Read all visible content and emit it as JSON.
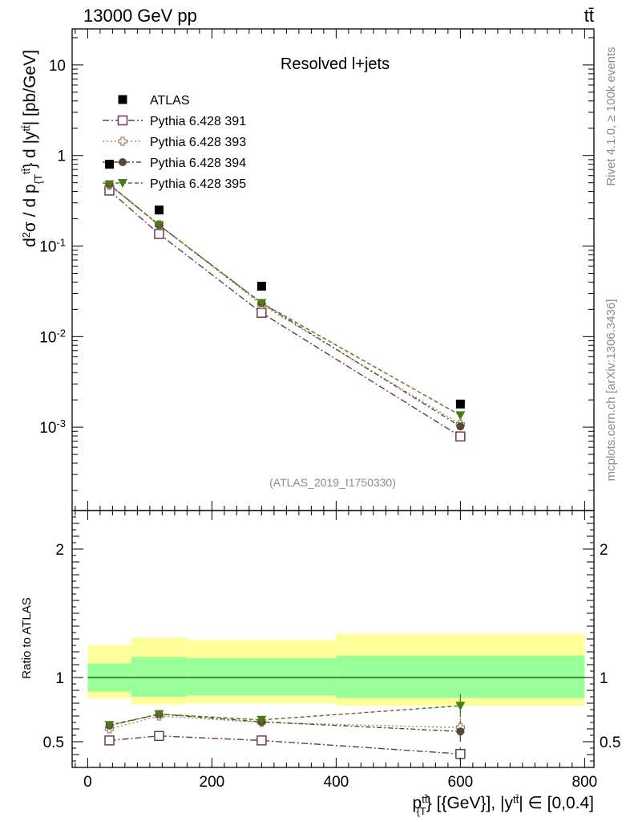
{
  "header": {
    "energy_label": "13000 GeV pp",
    "process_label": "tt̄"
  },
  "side_labels": {
    "rivet": "Rivet 4.1.0, ≥ 100k events",
    "mcplots": "mcplots.cern.ch [arXiv:1306.3436]"
  },
  "chart_data": {
    "type": "scatter",
    "title": "Resolved l+jets",
    "analysis_id": "(ATLAS_2019_I1750330)",
    "xlabel": "p_{T}^{tt̄} [{GeV}], |y^{tt̄}| ∈ [0,0.4]",
    "xlabel_display": "p{T}tt̄} [{GeV}], |ytt̄| ∈ [0,0.4]",
    "ylabel": "d²σ / d p_{T}^{tt̄} d |y^{tt̄}| [pb/GeV]",
    "ratio_ylabel": "Ratio to ATLAS",
    "xlim": [
      -25,
      815
    ],
    "ylim_main": [
      0.00012,
      25
    ],
    "yscale_main": "log",
    "ylim_ratio": [
      0.3,
      2.3
    ],
    "xticks": [
      0,
      200,
      400,
      600,
      800
    ],
    "xtick_labels": [
      "0",
      "200",
      "400",
      "600",
      "800"
    ],
    "yticks_main": [
      0.001,
      0.01,
      0.1,
      1,
      10
    ],
    "yticks_main_labels": [
      {
        "base": "10",
        "exp": "-3"
      },
      {
        "base": "10",
        "exp": "-2"
      },
      {
        "base": "10",
        "exp": "-1"
      },
      {
        "base": "1",
        "exp": ""
      },
      {
        "base": "10",
        "exp": ""
      }
    ],
    "yticks_ratio": [
      0.5,
      1,
      2
    ],
    "yticks_ratio_labels": [
      "0.5",
      "1",
      "2"
    ],
    "bins": [
      [
        0,
        70
      ],
      [
        70,
        160
      ],
      [
        160,
        400
      ],
      [
        400,
        800
      ]
    ],
    "x": [
      35,
      115,
      280,
      600
    ],
    "data": {
      "name": "ATLAS",
      "values": [
        0.8,
        0.25,
        0.036,
        0.0018
      ],
      "band_inner": [
        [
          0.89,
          1.11
        ],
        [
          0.85,
          1.16
        ],
        [
          0.86,
          1.15
        ],
        [
          0.84,
          1.17
        ]
      ],
      "band_outer": [
        [
          0.84,
          1.25
        ],
        [
          0.79,
          1.31
        ],
        [
          0.8,
          1.29
        ],
        [
          0.78,
          1.34
        ]
      ]
    },
    "series": [
      {
        "name": "Pythia 6.428 391",
        "color": "#6b3a57",
        "marker": "open-square",
        "dash": "8,3,2,3",
        "values": [
          0.41,
          0.136,
          0.0183,
          0.00079
        ],
        "ratio": [
          0.51,
          0.545,
          0.51,
          0.405
        ],
        "ratio_err": [
          0.0,
          0.0,
          0.03,
          0.05
        ]
      },
      {
        "name": "Pythia 6.428 393",
        "color": "#9c8a6a",
        "marker": "open-cross",
        "dash": "2,3",
        "values": [
          0.47,
          0.172,
          0.0225,
          0.00108
        ],
        "ratio": [
          0.6,
          0.7,
          0.65,
          0.61
        ],
        "ratio_err": [
          0.0,
          0.02,
          0.03,
          0.07
        ]
      },
      {
        "name": "Pythia 6.428 394",
        "color": "#5a4632",
        "marker": "filled-circle",
        "dash": "6,3,2,3",
        "values": [
          0.48,
          0.17,
          0.0235,
          0.00102
        ],
        "ratio": [
          0.625,
          0.715,
          0.655,
          0.58
        ],
        "ratio_err": [
          0.0,
          0.02,
          0.03,
          0.08
        ]
      },
      {
        "name": "Pythia 6.428 395",
        "color": "#4a7a1a",
        "marker": "filled-triangle-down",
        "dash": "5,3",
        "values": [
          0.48,
          0.17,
          0.0235,
          0.00135
        ],
        "ratio": [
          0.63,
          0.715,
          0.67,
          0.78
        ],
        "ratio_err": [
          0.0,
          0.02,
          0.03,
          0.09
        ]
      }
    ],
    "colors": {
      "data": "#000000",
      "band_inner": "#99ff99",
      "band_outer": "#ffff99"
    }
  }
}
